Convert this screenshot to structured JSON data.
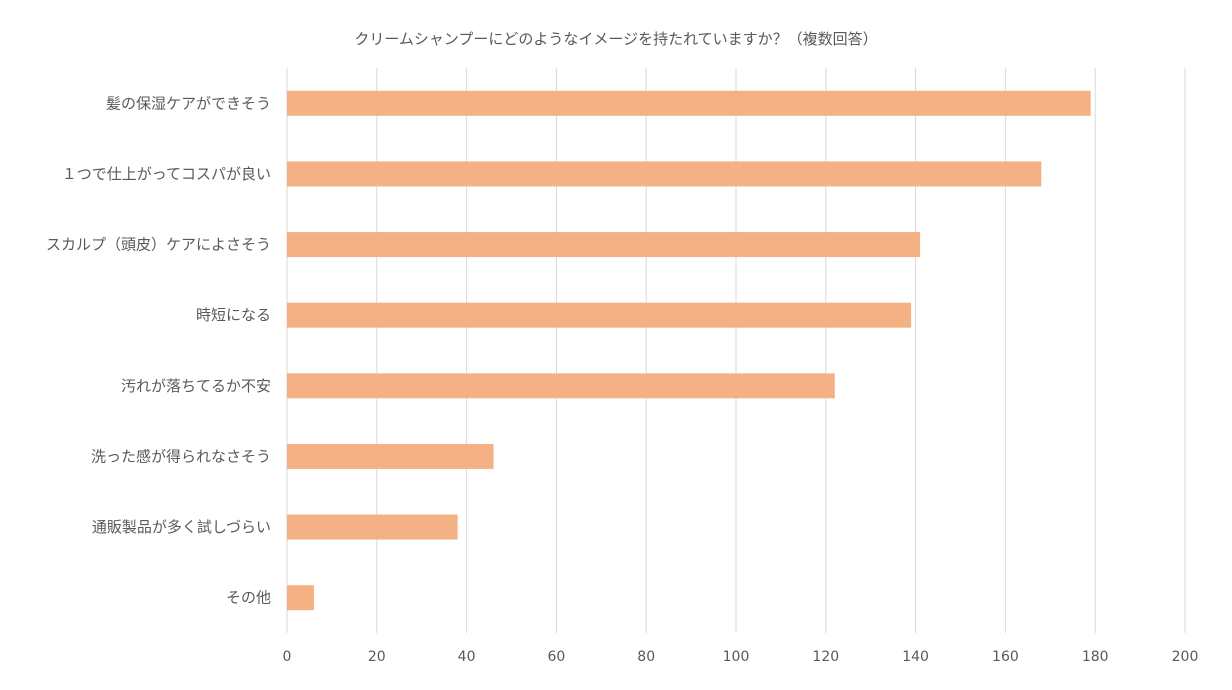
{
  "chart_data": {
    "type": "bar",
    "orientation": "horizontal",
    "title": "クリームシャンプーにどのようなイメージを持たれていますか？（複数回答）",
    "categories": [
      "髪の保湿ケアができそう",
      "１つで仕上がってコスパが良い",
      "スカルプ（頭皮）ケアによさそう",
      "時短になる",
      "汚れが落ちてるか不安",
      "洗った感が得られなさそう",
      "通販製品が多く試しづらい",
      "その他"
    ],
    "values": [
      179,
      168,
      141,
      139,
      122,
      46,
      38,
      6
    ],
    "xlim": [
      0,
      200
    ],
    "xticks": [
      0,
      20,
      40,
      60,
      80,
      100,
      120,
      140,
      160,
      180,
      200
    ],
    "xlabel": "",
    "ylabel": "",
    "grid": true,
    "legend": "none",
    "bar_color": "#f4b183",
    "grid_color": "#d9d9d9",
    "text_color": "#595959"
  }
}
